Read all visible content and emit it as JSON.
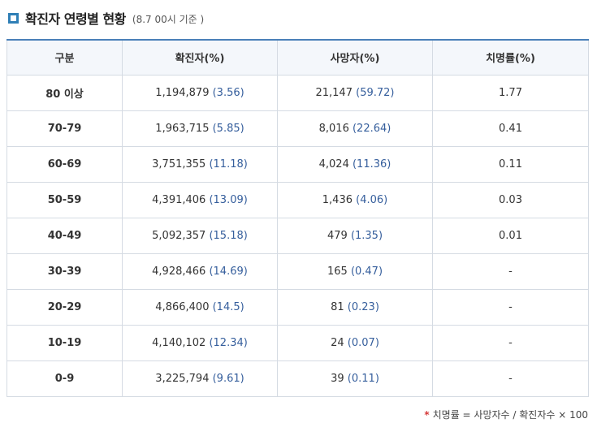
{
  "header": {
    "title": "확진자 연령별 현황",
    "subtitle": "(8.7 00시 기준 )"
  },
  "table": {
    "columns": [
      "구분",
      "확진자(%)",
      "사망자(%)",
      "치명률(%)"
    ],
    "rows": [
      {
        "group": "80 이상",
        "cases": "1,194,879",
        "cases_pct": "(3.56)",
        "deaths": "21,147",
        "deaths_pct": "(59.72)",
        "cfr": "1.77"
      },
      {
        "group": "70-79",
        "cases": "1,963,715",
        "cases_pct": "(5.85)",
        "deaths": "8,016",
        "deaths_pct": "(22.64)",
        "cfr": "0.41"
      },
      {
        "group": "60-69",
        "cases": "3,751,355",
        "cases_pct": "(11.18)",
        "deaths": "4,024",
        "deaths_pct": "(11.36)",
        "cfr": "0.11"
      },
      {
        "group": "50-59",
        "cases": "4,391,406",
        "cases_pct": "(13.09)",
        "deaths": "1,436",
        "deaths_pct": "(4.06)",
        "cfr": "0.03"
      },
      {
        "group": "40-49",
        "cases": "5,092,357",
        "cases_pct": "(15.18)",
        "deaths": "479",
        "deaths_pct": "(1.35)",
        "cfr": "0.01"
      },
      {
        "group": "30-39",
        "cases": "4,928,466",
        "cases_pct": "(14.69)",
        "deaths": "165",
        "deaths_pct": "(0.47)",
        "cfr": "-"
      },
      {
        "group": "20-29",
        "cases": "4,866,400",
        "cases_pct": "(14.5)",
        "deaths": "81",
        "deaths_pct": "(0.23)",
        "cfr": "-"
      },
      {
        "group": "10-19",
        "cases": "4,140,102",
        "cases_pct": "(12.34)",
        "deaths": "24",
        "deaths_pct": "(0.07)",
        "cfr": "-"
      },
      {
        "group": "0-9",
        "cases": "3,225,794",
        "cases_pct": "(9.61)",
        "deaths": "39",
        "deaths_pct": "(0.11)",
        "cfr": "-"
      }
    ]
  },
  "footnote": {
    "asterisk": "*",
    "text": "치명률 = 사망자수 / 확진자수 × 100"
  },
  "colors": {
    "accent_border": "#4a80b8",
    "header_bg": "#f4f7fb",
    "percent_text": "#355e9c",
    "asterisk": "#d63a3a"
  },
  "icons": {
    "title_marker": "square-outline-icon"
  }
}
